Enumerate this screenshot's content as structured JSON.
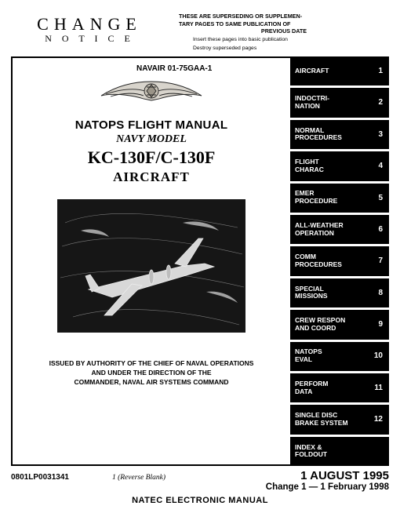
{
  "header": {
    "change_word": "CHANGE",
    "notice_word": "N O T I C E",
    "supersede_line1": "THESE ARE SUPERSEDING OR SUPPLEMEN-",
    "supersede_line2": "TARY PAGES TO SAME PUBLICATION OF",
    "supersede_line3": "PREVIOUS DATE",
    "supersede_sub1": "Insert these pages into basic publication",
    "supersede_sub2": "Destroy superseded pages"
  },
  "navair": "NAVAIR 01-75GAA-1",
  "titles": {
    "line1": "NATOPS FLIGHT MANUAL",
    "line2": "NAVY MODEL",
    "line3": "KC-130F/C-130F",
    "line4": "AIRCRAFT"
  },
  "authority": {
    "line1": "ISSUED BY AUTHORITY OF THE CHIEF OF NAVAL OPERATIONS",
    "line2": "AND UNDER THE DIRECTION OF THE",
    "line3": "COMMANDER, NAVAL AIR SYSTEMS COMMAND"
  },
  "tabs": [
    {
      "label": "AIRCRAFT",
      "num": "1"
    },
    {
      "label": "INDOCTRI-\nNATION",
      "num": "2"
    },
    {
      "label": "NORMAL\nPROCEDURES",
      "num": "3"
    },
    {
      "label": "FLIGHT\nCHARAC",
      "num": "4"
    },
    {
      "label": "EMER\nPROCEDURE",
      "num": "5"
    },
    {
      "label": "ALL-WEATHER\nOPERATION",
      "num": "6"
    },
    {
      "label": "COMM\nPROCEDURES",
      "num": "7"
    },
    {
      "label": "SPECIAL\nMISSIONS",
      "num": "8"
    },
    {
      "label": "CREW RESPON\nAND COORD",
      "num": "9"
    },
    {
      "label": "NATOPS\nEVAL",
      "num": "10"
    },
    {
      "label": "PERFORM\nDATA",
      "num": "11"
    },
    {
      "label": "SINGLE DISC\nBRAKE SYSTEM",
      "num": "12"
    },
    {
      "label": "INDEX &\nFOLDOUT",
      "num": ""
    }
  ],
  "footer": {
    "docnum": "0801LP0031341",
    "reverse": "1 (Reverse Blank)",
    "date1": "1 AUGUST  1995",
    "date2": "Change 1 — 1 February 1998",
    "natec": "NATEC  ELECTRONIC  MANUAL"
  },
  "colors": {
    "tab_bg": "#000000",
    "tab_fg": "#ffffff",
    "page_bg": "#ffffff",
    "border": "#000000",
    "illustration_bg": "#1a1a1a"
  }
}
